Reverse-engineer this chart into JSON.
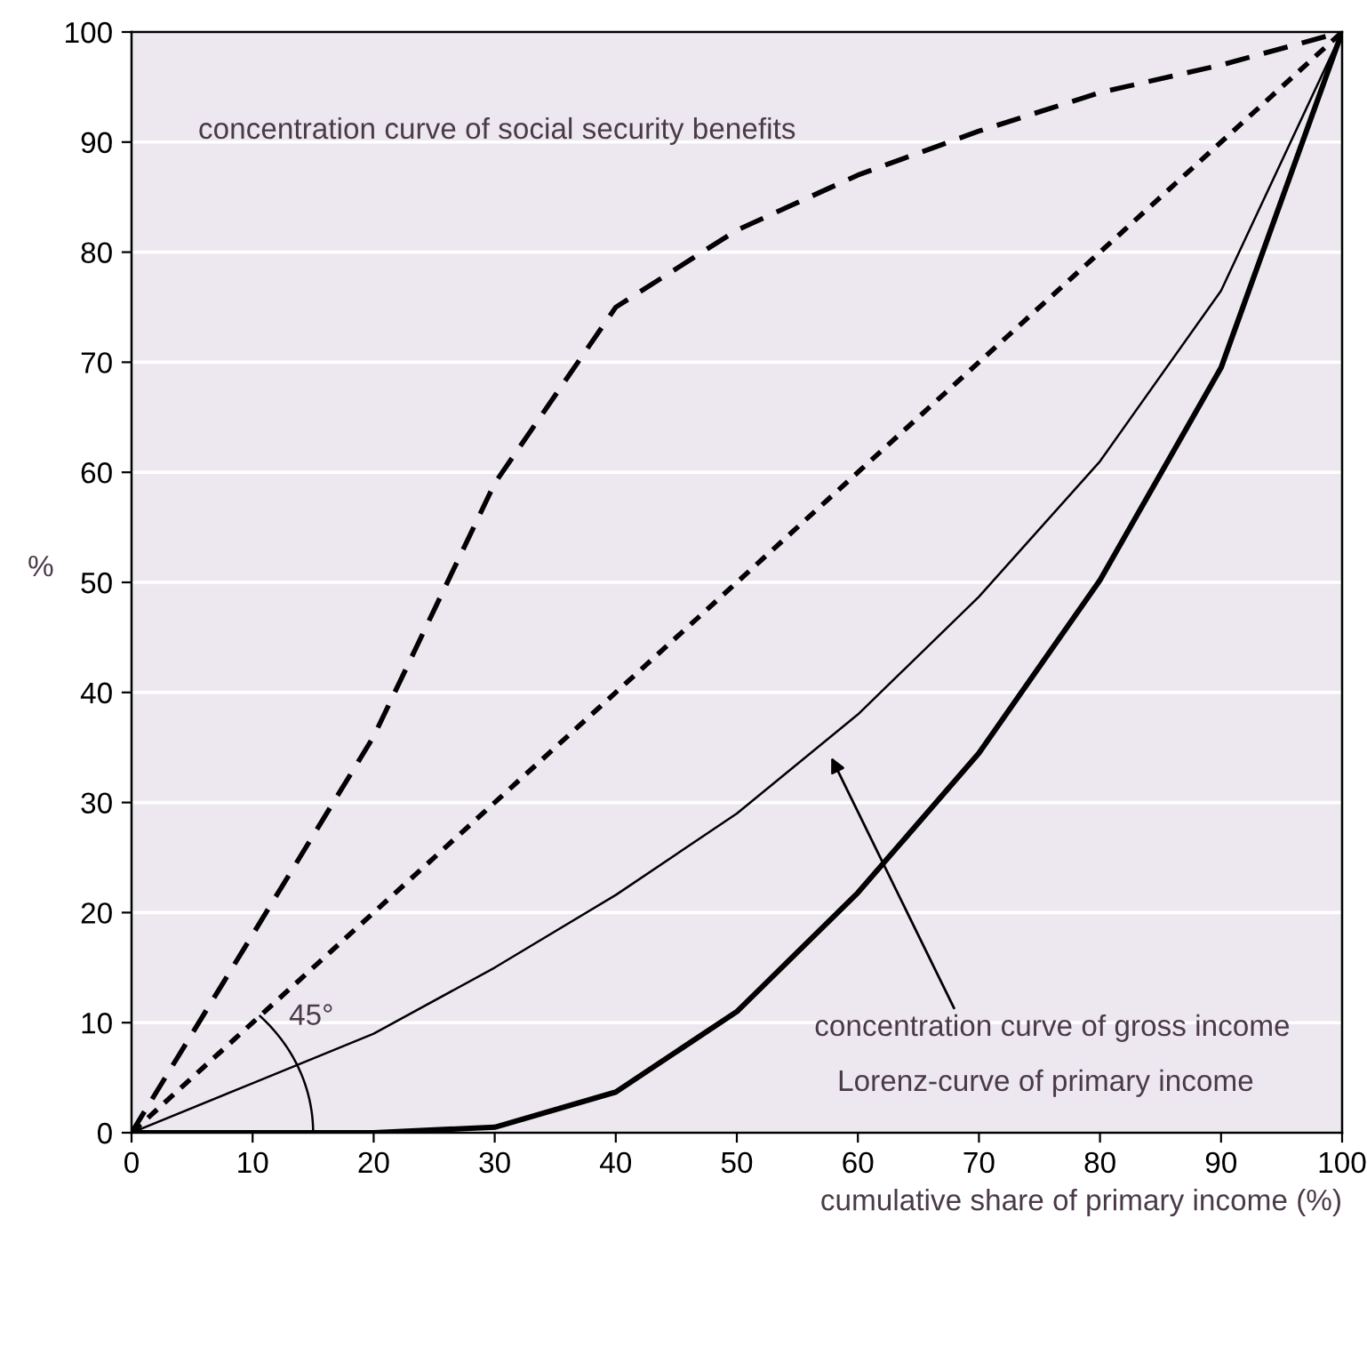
{
  "chart_data": {
    "type": "line",
    "xlabel": "cumulative share of primary income (%)",
    "ylabel": "%",
    "x": [
      0,
      10,
      20,
      30,
      40,
      50,
      60,
      70,
      80,
      90,
      100
    ],
    "series": [
      {
        "color": "#000000",
        "line_style": "dashed",
        "values": [
          0,
          18,
          36,
          59,
          75,
          82,
          87,
          91,
          94.5,
          97,
          100
        ]
      },
      {
        "color": "#000000",
        "line_style": "dotted",
        "x": [
          0,
          100
        ],
        "values": [
          0,
          100
        ]
      },
      {
        "color": "#000000",
        "line_style": "solid",
        "values": [
          0,
          4.5,
          9,
          15,
          21.6,
          29,
          38,
          48.7,
          61,
          76.5,
          100
        ]
      },
      {
        "color": "#000000",
        "line_style": "solid",
        "values": [
          0,
          0,
          0,
          0.5,
          3.7,
          11,
          21.8,
          34.5,
          50.2,
          69.5,
          100
        ]
      }
    ],
    "annotations": [
      "concentration curve of social security benefits",
      "concentration curve of gross income",
      "Lorenz-curve of primary income",
      "45°"
    ],
    "xlim": [
      0,
      100
    ],
    "ylim": [
      0,
      100
    ],
    "xticks": [
      0,
      10,
      20,
      30,
      40,
      50,
      60,
      70,
      80,
      90,
      100
    ],
    "yticks": [
      0,
      10,
      20,
      30,
      40,
      50,
      60,
      70,
      80,
      90,
      100
    ],
    "grid": "y",
    "legend": false
  }
}
